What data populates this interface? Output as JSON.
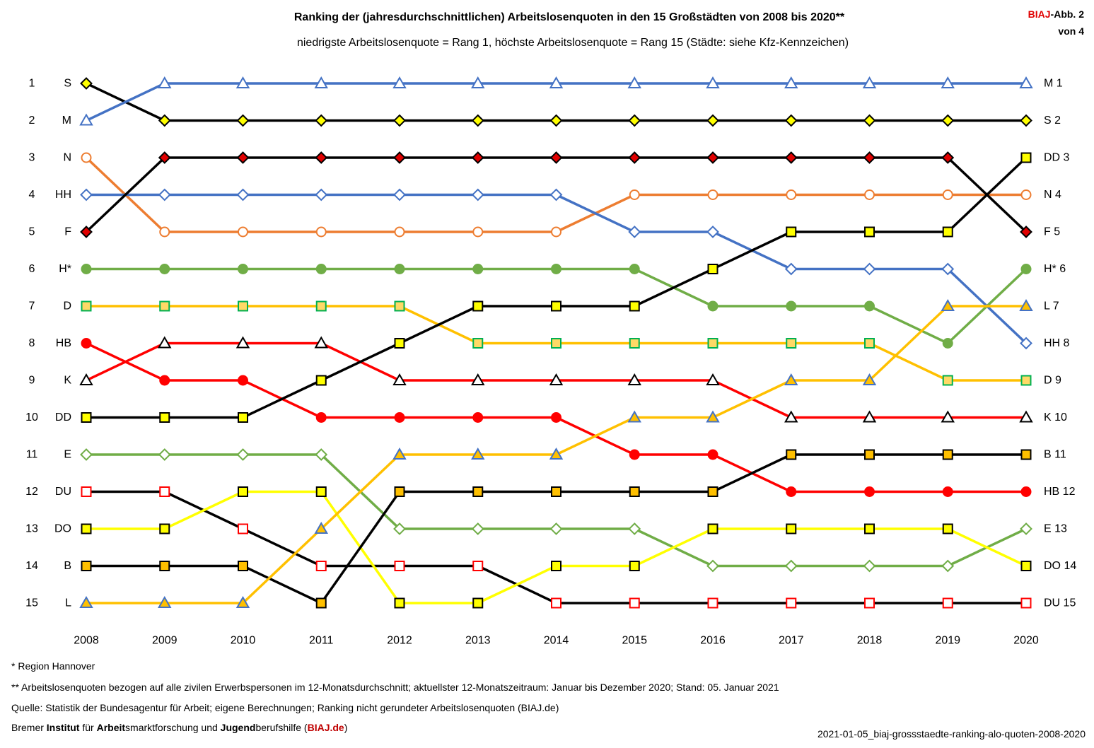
{
  "title": "Ranking der (jahresdurchschnittlichen) Arbeitslosenquoten in den 15 Großstädten von 2008 bis 2020**",
  "subtitle": "niedrigste Arbeitslosenquote = Rang 1, höchste Arbeitslosenquote = Rang 15 (Städte: siehe Kfz-Kennzeichen)",
  "badge": {
    "org": "BIAJ",
    "label": "-Abb. 2",
    "of": "von 4"
  },
  "footnotes": {
    "region": "* Region Hannover",
    "quoten": "** Arbeitslosenquoten bezogen auf alle zivilen Erwerbspersonen im 12-Monatsdurchschnitt; aktuellster 12-Monatszeitraum: Januar bis Dezember 2020; Stand: 05. Januar 2021",
    "source": "Quelle: Statistik der Bundesagentur für Arbeit; eigene Berechnungen; Ranking nicht gerundeter Arbeitslosenquoten (BIAJ.de)",
    "institute": {
      "p1": "Bremer ",
      "p2": "Institut",
      "p3": " für ",
      "p4": "Arbeit",
      "p5": "smarktforschung und ",
      "p6": "Jugend",
      "p7": "berufshilfe (",
      "p8": "BIAJ.de",
      "p9": ")"
    },
    "filename": "2021-01-05_biaj-grossstaedte-ranking-alo-quoten-2008-2020"
  },
  "chart_data": {
    "type": "line",
    "title": "Ranking der (jahresdurchschnittlichen) Arbeitslosenquoten in den 15 Großstädten von 2008 bis 2020**",
    "xlabel": "",
    "ylabel": "",
    "x": [
      2008,
      2009,
      2010,
      2011,
      2012,
      2013,
      2014,
      2015,
      2016,
      2017,
      2018,
      2019,
      2020
    ],
    "ylim": [
      1,
      15
    ],
    "y_inverted": true,
    "grid": false,
    "legend": "none",
    "rank_ticks": [
      1,
      2,
      3,
      4,
      5,
      6,
      7,
      8,
      9,
      10,
      11,
      12,
      13,
      14,
      15
    ],
    "left_labels": [
      "S",
      "M",
      "N",
      "HH",
      "F",
      "H*",
      "D",
      "HB",
      "K",
      "DD",
      "E",
      "DU",
      "DO",
      "B",
      "L"
    ],
    "right_labels": [
      "M 1",
      "S 2",
      "DD 3",
      "N 4",
      "F 5",
      "H* 6",
      "L 7",
      "HH 8",
      "D 9",
      "K 10",
      "B 11",
      "HB 12",
      "E 13",
      "DO 14",
      "DU 15"
    ],
    "series": [
      {
        "name": "S",
        "line": "#000000",
        "marker": "diamond",
        "fill": "#ffff00",
        "edge": "#000000",
        "values": [
          1,
          2,
          2,
          2,
          2,
          2,
          2,
          2,
          2,
          2,
          2,
          2,
          2
        ]
      },
      {
        "name": "M",
        "line": "#4472c4",
        "marker": "triangle",
        "fill": "#ffffff",
        "edge": "#4472c4",
        "values": [
          2,
          1,
          1,
          1,
          1,
          1,
          1,
          1,
          1,
          1,
          1,
          1,
          1
        ]
      },
      {
        "name": "N",
        "line": "#ed7d31",
        "marker": "circle",
        "fill": "#ffffff",
        "edge": "#ed7d31",
        "values": [
          3,
          5,
          5,
          5,
          5,
          5,
          5,
          4,
          4,
          4,
          4,
          4,
          4
        ]
      },
      {
        "name": "HH",
        "line": "#4472c4",
        "marker": "diamond",
        "fill": "#ffffff",
        "edge": "#4472c4",
        "values": [
          4,
          4,
          4,
          4,
          4,
          4,
          4,
          5,
          5,
          6,
          6,
          6,
          8
        ]
      },
      {
        "name": "F",
        "line": "#000000",
        "marker": "diamond",
        "fill": "#e00000",
        "edge": "#000000",
        "values": [
          5,
          3,
          3,
          3,
          3,
          3,
          3,
          3,
          3,
          3,
          3,
          3,
          5
        ]
      },
      {
        "name": "H*",
        "line": "#70ad47",
        "marker": "circle",
        "fill": "#70ad47",
        "edge": "#70ad47",
        "values": [
          6,
          6,
          6,
          6,
          6,
          6,
          6,
          6,
          7,
          7,
          7,
          8,
          6
        ]
      },
      {
        "name": "D",
        "line": "#ffc000",
        "marker": "square",
        "fill": "#ffd966",
        "edge": "#00b050",
        "values": [
          7,
          7,
          7,
          7,
          7,
          8,
          8,
          8,
          8,
          8,
          8,
          9,
          9
        ]
      },
      {
        "name": "HB",
        "line": "#ff0000",
        "marker": "circle",
        "fill": "#ff0000",
        "edge": "#ff0000",
        "values": [
          8,
          9,
          9,
          10,
          10,
          10,
          10,
          11,
          11,
          12,
          12,
          12,
          12
        ]
      },
      {
        "name": "K",
        "line": "#ff0000",
        "marker": "triangle",
        "fill": "#ffffff",
        "edge": "#000000",
        "values": [
          9,
          8,
          8,
          8,
          9,
          9,
          9,
          9,
          9,
          10,
          10,
          10,
          10
        ]
      },
      {
        "name": "DD",
        "line": "#000000",
        "marker": "square",
        "fill": "#ffff00",
        "edge": "#000000",
        "values": [
          10,
          10,
          10,
          9,
          8,
          7,
          7,
          7,
          6,
          5,
          5,
          5,
          3
        ]
      },
      {
        "name": "E",
        "line": "#70ad47",
        "marker": "diamond",
        "fill": "#ffffff",
        "edge": "#70ad47",
        "values": [
          11,
          11,
          11,
          11,
          13,
          13,
          13,
          13,
          14,
          14,
          14,
          14,
          13
        ]
      },
      {
        "name": "DU",
        "line": "#000000",
        "marker": "square",
        "fill": "#ffffff",
        "edge": "#ff0000",
        "values": [
          12,
          12,
          13,
          14,
          14,
          14,
          15,
          15,
          15,
          15,
          15,
          15,
          15
        ]
      },
      {
        "name": "DO",
        "line": "#ffff00",
        "marker": "square",
        "fill": "#ffff00",
        "edge": "#000000",
        "values": [
          13,
          13,
          12,
          12,
          15,
          15,
          14,
          14,
          13,
          13,
          13,
          13,
          14
        ]
      },
      {
        "name": "B",
        "line": "#000000",
        "marker": "square",
        "fill": "#ffc000",
        "edge": "#000000",
        "values": [
          14,
          14,
          14,
          15,
          12,
          12,
          12,
          12,
          12,
          11,
          11,
          11,
          11
        ]
      },
      {
        "name": "L",
        "line": "#ffc000",
        "marker": "triangle",
        "fill": "#ffc000",
        "edge": "#4472c4",
        "values": [
          15,
          15,
          15,
          13,
          11,
          11,
          11,
          10,
          10,
          9,
          9,
          7,
          7
        ]
      }
    ]
  }
}
